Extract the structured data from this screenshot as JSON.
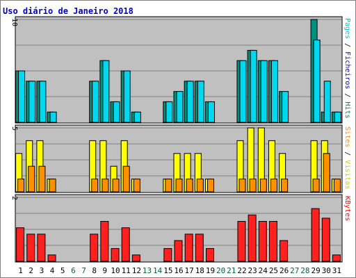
{
  "chart_data": {
    "type": "bar",
    "title": "Uso diário de Janeiro 2018",
    "x": [
      "1",
      "2",
      "3",
      "4",
      "5",
      "6",
      "7",
      "8",
      "9",
      "10",
      "11",
      "12",
      "13",
      "14",
      "15",
      "16",
      "17",
      "18",
      "19",
      "20",
      "21",
      "22",
      "23",
      "24",
      "25",
      "26",
      "27",
      "28",
      "29",
      "30",
      "31"
    ],
    "weekend_days": [
      "6",
      "7",
      "13",
      "14",
      "20",
      "21",
      "27",
      "28"
    ],
    "colors": {
      "title": "#0000cc",
      "weekday_label": "#000000",
      "weekend_label": "#006633",
      "panel_bg": "#c0c0c0",
      "grid": "#808080",
      "hits": "#008060",
      "files": "#00c0d0",
      "pages": "#00e0ff",
      "visits": "#ffff00",
      "sites": "#ff8c00",
      "kbytes": "#ff0000"
    },
    "panels": [
      {
        "id": "traffic",
        "ymax": 10,
        "ymax_label": "10",
        "legend": [
          {
            "name": "Pages",
            "color": "#00c0d0"
          },
          {
            "name": " / ",
            "color": "#000000"
          },
          {
            "name": "Ficheiros",
            "color": "#0000cc"
          },
          {
            "name": " / ",
            "color": "#000000"
          },
          {
            "name": "Hits",
            "color": "#008060"
          }
        ],
        "series": [
          {
            "name": "Hits",
            "color": "#009080",
            "values": [
              5,
              4,
              4,
              1,
              0,
              0,
              0,
              4,
              6,
              2,
              5,
              1,
              0,
              0,
              2,
              3,
              4,
              4,
              2,
              0,
              0,
              6,
              7,
              6,
              6,
              3,
              0,
              0,
              10,
              1,
              1
            ]
          },
          {
            "name": "Ficheiros",
            "color": "#0050ff",
            "values": [
              0,
              0,
              0,
              0,
              0,
              0,
              0,
              0,
              0,
              0,
              0,
              0,
              0,
              0,
              0,
              0,
              0,
              0,
              0,
              0,
              0,
              0,
              0,
              0,
              0,
              0,
              0,
              0,
              8,
              0,
              0
            ]
          },
          {
            "name": "Pages",
            "color": "#00d8f0",
            "values": [
              5,
              4,
              4,
              1,
              0,
              0,
              0,
              4,
              6,
              2,
              5,
              1,
              0,
              0,
              2,
              3,
              4,
              4,
              2,
              0,
              0,
              6,
              7,
              6,
              6,
              3,
              0,
              0,
              8,
              4,
              1
            ]
          }
        ]
      },
      {
        "id": "visits",
        "ymax": 5,
        "ymax_label": "5",
        "legend": [
          {
            "name": "Sites",
            "color": "#ff8c00"
          },
          {
            "name": " / ",
            "color": "#000000"
          },
          {
            "name": "Visitas",
            "color": "#cccc00"
          }
        ],
        "series": [
          {
            "name": "Visitas",
            "color": "#ffff00",
            "values": [
              3,
              4,
              4,
              1,
              0,
              0,
              0,
              4,
              4,
              2,
              4,
              1,
              0,
              0,
              1,
              3,
              3,
              3,
              1,
              0,
              0,
              4,
              5,
              5,
              4,
              3,
              0,
              0,
              4,
              4,
              1
            ]
          },
          {
            "name": "Sites",
            "color": "#ff9000",
            "values": [
              1,
              2,
              2,
              1,
              0,
              0,
              0,
              1,
              1,
              1,
              2,
              1,
              0,
              0,
              1,
              1,
              1,
              1,
              1,
              0,
              0,
              1,
              1,
              1,
              1,
              1,
              0,
              0,
              1,
              3,
              1
            ]
          }
        ]
      },
      {
        "id": "kbytes",
        "ymax": 2,
        "ymax_label": "2",
        "legend": [
          {
            "name": "KBytes",
            "color": "#ff0000"
          }
        ],
        "series": [
          {
            "name": "KBytes",
            "color": "#ff2020",
            "values": [
              1.05,
              0.85,
              0.85,
              0.2,
              0,
              0,
              0,
              0.85,
              1.25,
              0.4,
              1.05,
              0.2,
              0,
              0,
              0.4,
              0.65,
              0.85,
              0.85,
              0.4,
              0,
              0,
              1.25,
              1.45,
              1.25,
              1.25,
              0.65,
              0,
              0,
              1.65,
              1.35,
              0.2
            ]
          }
        ]
      }
    ]
  }
}
